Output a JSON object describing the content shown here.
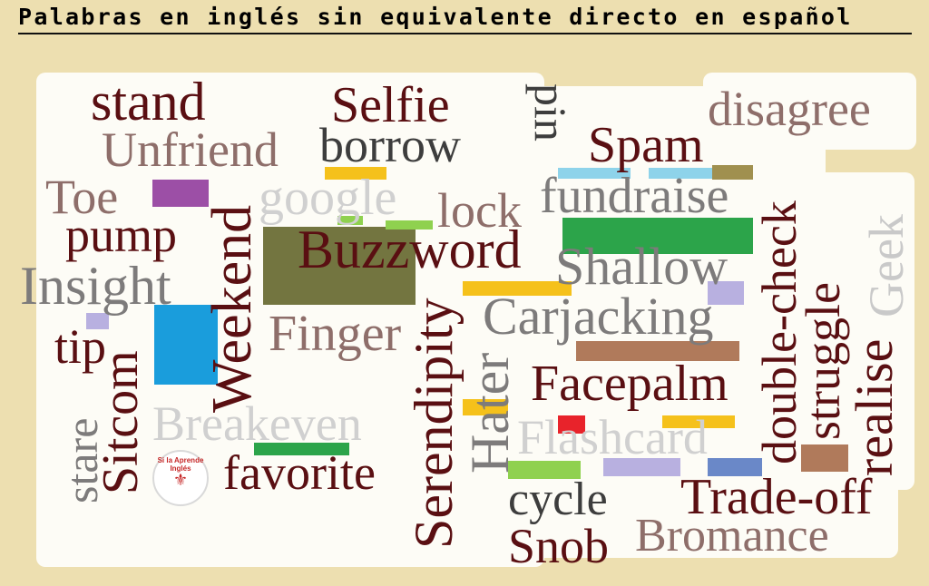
{
  "title": "Palabras en inglés sin equivalente directo en español",
  "words": {
    "stand": "stand",
    "unfriend": "Unfriend",
    "toe": "Toe",
    "pump": "pump",
    "insight": "Insight",
    "tip": "tip",
    "stare": "stare",
    "sitcom": "Sitcom",
    "weekend": "Weekend",
    "google": "google",
    "selfie": "Selfie",
    "borrow": "borrow",
    "lock": "lock",
    "buzzword": "Buzzword",
    "finger": "Finger",
    "breakeven": "Breakeven",
    "favorite": "favorite",
    "serendipity": "Serendipity",
    "hater": "Hater",
    "pin": "pin",
    "spam": "Spam",
    "fundraise": "fundraise",
    "shallow": "Shallow",
    "carjacking": "Carjacking",
    "facepalm": "Facepalm",
    "flashcard": "Flashcard",
    "cycle": "cycle",
    "snob": "Snob",
    "trade_off": "Trade-off",
    "bromance": "Bromance",
    "disagree": "disagree",
    "double_check": "double-check",
    "struggle": "struggle",
    "realise": "realise",
    "geek": "Geek"
  },
  "logo_text": "Si la Aprende Inglés",
  "colors": {
    "background": "#eddfb0",
    "dark_red": "#5a0f12",
    "taupe": "#8e6e6a",
    "gray": "#7d7b7b",
    "light_gray": "#c9c9c9",
    "charcoal": "#3d3d3d"
  }
}
